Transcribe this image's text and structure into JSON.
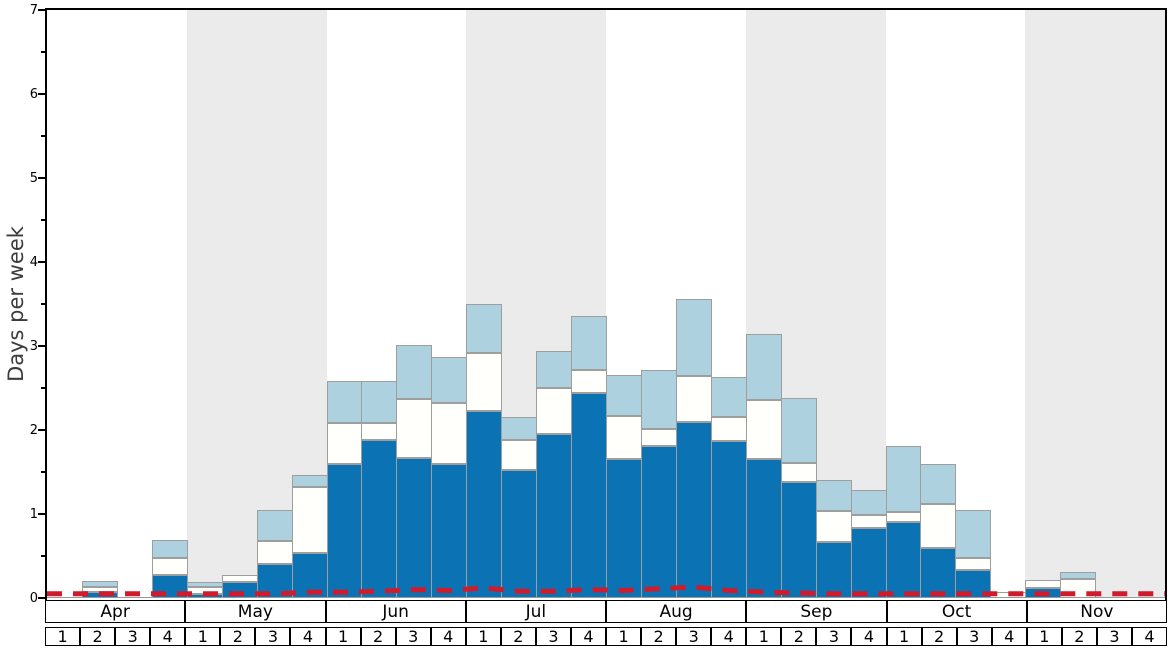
{
  "chart_data": {
    "type": "bar",
    "stacked": true,
    "title": "",
    "ylabel": "Days per week",
    "ylim": [
      0,
      7
    ],
    "yticks_major": [
      0,
      1,
      2,
      3,
      4,
      5,
      6,
      7
    ],
    "ytick_minor_step": 0.5,
    "grid": false,
    "legend": "none",
    "months": [
      "Apr",
      "May",
      "Jun",
      "Jul",
      "Aug",
      "Sep",
      "Oct",
      "Nov"
    ],
    "week_labels": [
      "1",
      "2",
      "3",
      "4"
    ],
    "shaded_months": [
      "May",
      "Jul",
      "Sep",
      "Nov"
    ],
    "band_color": "#ebebeb",
    "series": [
      {
        "name": "dark-blue-segment",
        "color": "#0b73b4",
        "values": [
          0,
          0.07,
          0,
          0.27,
          0.05,
          0.19,
          0.4,
          0.54,
          1.6,
          1.88,
          1.67,
          1.6,
          2.23,
          1.52,
          1.95,
          2.44,
          1.65,
          1.81,
          2.09,
          1.87,
          1.66,
          1.38,
          0.67,
          0.83,
          0.9,
          0.6,
          0.33,
          0,
          0.12,
          0,
          0,
          0
        ]
      },
      {
        "name": "white-segment",
        "color": "#fffffc",
        "values": [
          0,
          0.06,
          0,
          0.21,
          0.08,
          0.09,
          0.28,
          0.78,
          0.48,
          0.2,
          0.7,
          0.72,
          0.69,
          0.36,
          0.55,
          0.28,
          0.52,
          0.2,
          0.55,
          0.28,
          0.7,
          0.23,
          0.37,
          0.16,
          0.12,
          0.52,
          0.15,
          0.07,
          0.09,
          0.23,
          0,
          0
        ]
      },
      {
        "name": "light-blue-segment",
        "color": "#aed1df",
        "values": [
          0,
          0.07,
          0,
          0.21,
          0.06,
          0,
          0.37,
          0.14,
          0.5,
          0.5,
          0.64,
          0.55,
          0.58,
          0.27,
          0.44,
          0.64,
          0.48,
          0.71,
          0.92,
          0.48,
          0.78,
          0.77,
          0.36,
          0.3,
          0.79,
          0.48,
          0.57,
          0,
          0,
          0.08,
          0,
          0
        ]
      }
    ],
    "line": {
      "name": "red-dashed-line",
      "color": "#d01b2c",
      "style": "dashed",
      "values": [
        0.05,
        0.05,
        0.05,
        0.05,
        0.05,
        0.05,
        0.05,
        0.07,
        0.07,
        0.08,
        0.1,
        0.09,
        0.12,
        0.08,
        0.08,
        0.1,
        0.09,
        0.11,
        0.13,
        0.09,
        0.07,
        0.06,
        0.05,
        0.05,
        0.05,
        0.05,
        0.05,
        0.05,
        0.05,
        0.05,
        0.05,
        0.05
      ]
    }
  }
}
